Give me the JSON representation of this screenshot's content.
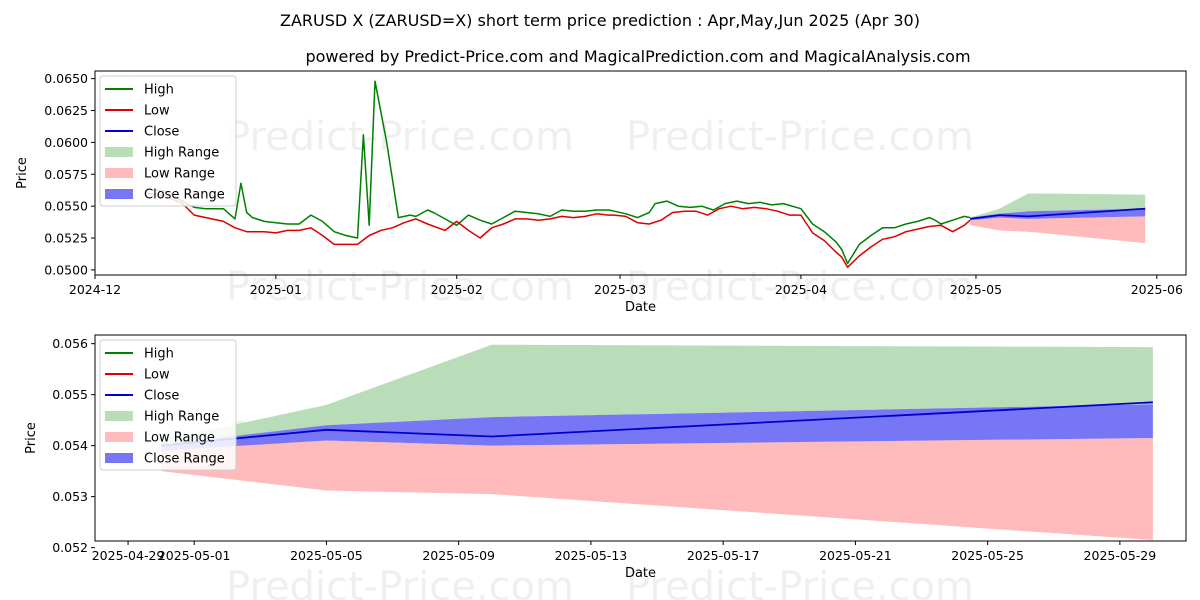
{
  "title": "ZARUSD X (ZARUSD=X) short term price prediction : Apr,May,Jun 2025 (Apr 30)",
  "subtitle": "powered by Predict-Price.com and MagicalPrediction.com and MagicalAnalysis.com",
  "watermark": "Predict-Price.com",
  "colors": {
    "high": "#008000",
    "low": "#dd0000",
    "close": "#0000cc",
    "high_range": "#b9dcb9",
    "low_range": "#ffbbbb",
    "close_range": "#7777f5"
  },
  "chart_data": [
    {
      "type": "line",
      "xlabel": "Date",
      "ylabel": "Price",
      "xlim": [
        "2024-12-01",
        "2025-06-06"
      ],
      "ylim": [
        0.0496,
        0.0656
      ],
      "x_ticks": [
        "2024-12",
        "2025-01",
        "2025-02",
        "2025-03",
        "2025-04",
        "2025-05",
        "2025-06"
      ],
      "y_ticks": [
        "0.0500",
        "0.0525",
        "0.0550",
        "0.0575",
        "0.0600",
        "0.0625",
        "0.0650"
      ],
      "legend": [
        "High",
        "Low",
        "Close",
        "High Range",
        "Low Range",
        "Close Range"
      ],
      "legend_position": "top-left",
      "grid": false,
      "high": {
        "x": [
          "2024-12-10",
          "2024-12-13",
          "2024-12-16",
          "2024-12-18",
          "2024-12-20",
          "2024-12-23",
          "2024-12-25",
          "2024-12-26",
          "2024-12-27",
          "2024-12-28",
          "2024-12-30",
          "2025-01-01",
          "2025-01-03",
          "2025-01-05",
          "2025-01-07",
          "2025-01-09",
          "2025-01-11",
          "2025-01-13",
          "2025-01-15",
          "2025-01-16",
          "2025-01-17",
          "2025-01-18",
          "2025-01-20",
          "2025-01-22",
          "2025-01-24",
          "2025-01-25",
          "2025-01-27",
          "2025-01-28",
          "2025-01-30",
          "2025-02-01",
          "2025-02-03",
          "2025-02-05",
          "2025-02-07",
          "2025-02-09",
          "2025-02-11",
          "2025-02-13",
          "2025-02-15",
          "2025-02-17",
          "2025-02-19",
          "2025-02-21",
          "2025-02-23",
          "2025-02-25",
          "2025-02-27",
          "2025-02-28",
          "2025-03-02",
          "2025-03-04",
          "2025-03-06",
          "2025-03-07",
          "2025-03-09",
          "2025-03-11",
          "2025-03-13",
          "2025-03-15",
          "2025-03-17",
          "2025-03-19",
          "2025-03-21",
          "2025-03-23",
          "2025-03-25",
          "2025-03-27",
          "2025-03-29",
          "2025-04-01",
          "2025-04-03",
          "2025-04-05",
          "2025-04-07",
          "2025-04-08",
          "2025-04-09",
          "2025-04-11",
          "2025-04-13",
          "2025-04-15",
          "2025-04-17",
          "2025-04-19",
          "2025-04-21",
          "2025-04-23",
          "2025-04-24",
          "2025-04-25",
          "2025-04-27",
          "2025-04-29",
          "2025-04-30"
        ],
        "y": [
          0.0563,
          0.0562,
          0.0554,
          0.0549,
          0.0548,
          0.0548,
          0.054,
          0.0568,
          0.0545,
          0.0541,
          0.0538,
          0.0537,
          0.0536,
          0.0536,
          0.0543,
          0.0538,
          0.053,
          0.0527,
          0.0525,
          0.0606,
          0.0535,
          0.0648,
          0.06,
          0.0541,
          0.0543,
          0.0542,
          0.0547,
          0.0545,
          0.054,
          0.0535,
          0.0543,
          0.0539,
          0.0536,
          0.0541,
          0.0546,
          0.0545,
          0.0544,
          0.0542,
          0.0547,
          0.0546,
          0.0546,
          0.0547,
          0.0547,
          0.0546,
          0.0544,
          0.0541,
          0.0545,
          0.0552,
          0.0554,
          0.055,
          0.0549,
          0.055,
          0.0547,
          0.0552,
          0.0554,
          0.0552,
          0.0553,
          0.0551,
          0.0552,
          0.0548,
          0.0536,
          0.053,
          0.0522,
          0.0516,
          0.0505,
          0.052,
          0.0527,
          0.0533,
          0.0533,
          0.0536,
          0.0538,
          0.0541,
          0.0539,
          0.0536,
          0.0539,
          0.0542,
          0.0541
        ]
      },
      "low": {
        "x": [
          "2024-12-10",
          "2024-12-13",
          "2024-12-16",
          "2024-12-18",
          "2024-12-20",
          "2024-12-23",
          "2024-12-25",
          "2024-12-27",
          "2024-12-30",
          "2025-01-01",
          "2025-01-03",
          "2025-01-05",
          "2025-01-07",
          "2025-01-09",
          "2025-01-11",
          "2025-01-13",
          "2025-01-15",
          "2025-01-17",
          "2025-01-19",
          "2025-01-21",
          "2025-01-23",
          "2025-01-25",
          "2025-01-27",
          "2025-01-30",
          "2025-02-01",
          "2025-02-03",
          "2025-02-05",
          "2025-02-07",
          "2025-02-09",
          "2025-02-11",
          "2025-02-13",
          "2025-02-15",
          "2025-02-17",
          "2025-02-19",
          "2025-02-21",
          "2025-02-23",
          "2025-02-25",
          "2025-02-27",
          "2025-02-28",
          "2025-03-02",
          "2025-03-04",
          "2025-03-06",
          "2025-03-08",
          "2025-03-10",
          "2025-03-12",
          "2025-03-14",
          "2025-03-16",
          "2025-03-18",
          "2025-03-20",
          "2025-03-22",
          "2025-03-24",
          "2025-03-26",
          "2025-03-28",
          "2025-03-30",
          "2025-04-01",
          "2025-04-03",
          "2025-04-05",
          "2025-04-07",
          "2025-04-08",
          "2025-04-09",
          "2025-04-11",
          "2025-04-13",
          "2025-04-15",
          "2025-04-17",
          "2025-04-19",
          "2025-04-21",
          "2025-04-23",
          "2025-04-25",
          "2025-04-27",
          "2025-04-29",
          "2025-04-30"
        ],
        "y": [
          0.056,
          0.0558,
          0.0552,
          0.0543,
          0.0541,
          0.0538,
          0.0533,
          0.053,
          0.053,
          0.0529,
          0.0531,
          0.0531,
          0.0533,
          0.0527,
          0.052,
          0.052,
          0.052,
          0.0527,
          0.0531,
          0.0533,
          0.0537,
          0.054,
          0.0536,
          0.0531,
          0.0538,
          0.0531,
          0.0525,
          0.0533,
          0.0536,
          0.054,
          0.054,
          0.0539,
          0.054,
          0.0542,
          0.0541,
          0.0542,
          0.0544,
          0.0543,
          0.0543,
          0.0542,
          0.0537,
          0.0536,
          0.0539,
          0.0545,
          0.0546,
          0.0546,
          0.0543,
          0.0548,
          0.055,
          0.0548,
          0.0549,
          0.0548,
          0.0546,
          0.0543,
          0.0543,
          0.0529,
          0.0523,
          0.0514,
          0.051,
          0.0502,
          0.0511,
          0.0518,
          0.0524,
          0.0526,
          0.053,
          0.0532,
          0.0534,
          0.0535,
          0.053,
          0.0535,
          0.0539
        ]
      },
      "close": {
        "x": [
          "2025-04-30",
          "2025-05-05",
          "2025-05-10",
          "2025-05-30"
        ],
        "y": [
          0.054,
          0.0543,
          0.0542,
          0.0548
        ]
      },
      "high_range": {
        "x": [
          "2025-04-30",
          "2025-05-05",
          "2025-05-10",
          "2025-05-30"
        ],
        "y_low": [
          0.054,
          0.0544,
          0.0546,
          0.0548
        ],
        "y_high": [
          0.0541,
          0.0548,
          0.056,
          0.0559
        ]
      },
      "low_range": {
        "x": [
          "2025-04-30",
          "2025-05-05",
          "2025-05-10",
          "2025-05-30"
        ],
        "y_low": [
          0.0535,
          0.0531,
          0.053,
          0.0521
        ],
        "y_high": [
          0.0539,
          0.0541,
          0.054,
          0.0542
        ]
      },
      "close_range": {
        "x": [
          "2025-04-30",
          "2025-05-05",
          "2025-05-10",
          "2025-05-30"
        ],
        "y_low": [
          0.0539,
          0.0541,
          0.054,
          0.0542
        ],
        "y_high": [
          0.0541,
          0.0544,
          0.0546,
          0.0548
        ]
      }
    },
    {
      "type": "line",
      "xlabel": "Date",
      "ylabel": "Price",
      "xlim": [
        "2025-04-28",
        "2025-05-31"
      ],
      "ylim": [
        0.05213,
        0.05617
      ],
      "x_ticks": [
        "2025-04-29",
        "2025-05-01",
        "2025-05-05",
        "2025-05-09",
        "2025-05-13",
        "2025-05-17",
        "2025-05-21",
        "2025-05-25",
        "2025-05-29"
      ],
      "y_ticks": [
        "0.052",
        "0.053",
        "0.054",
        "0.055",
        "0.056"
      ],
      "legend": [
        "High",
        "Low",
        "Close",
        "High Range",
        "Low Range",
        "Close Range"
      ],
      "legend_position": "top-left",
      "grid": false,
      "close": {
        "x": [
          "2025-04-30",
          "2025-05-05",
          "2025-05-10",
          "2025-05-30"
        ],
        "y": [
          0.054,
          0.05431,
          0.05418,
          0.05485
        ]
      },
      "high_range": {
        "x": [
          "2025-04-30",
          "2025-05-05",
          "2025-05-10",
          "2025-05-30"
        ],
        "y_low": [
          0.05402,
          0.0544,
          0.05456,
          0.05481
        ],
        "y_high": [
          0.0541,
          0.0548,
          0.05598,
          0.05593
        ]
      },
      "low_range": {
        "x": [
          "2025-04-30",
          "2025-05-05",
          "2025-05-10",
          "2025-05-30"
        ],
        "y_low": [
          0.0535,
          0.05312,
          0.05305,
          0.05215
        ],
        "y_high": [
          0.0539,
          0.0541,
          0.054,
          0.05415
        ]
      },
      "close_range": {
        "x": [
          "2025-04-30",
          "2025-05-05",
          "2025-05-10",
          "2025-05-30"
        ],
        "y_low": [
          0.0539,
          0.0541,
          0.054,
          0.05415
        ],
        "y_high": [
          0.05402,
          0.0544,
          0.05456,
          0.05481
        ]
      }
    }
  ]
}
